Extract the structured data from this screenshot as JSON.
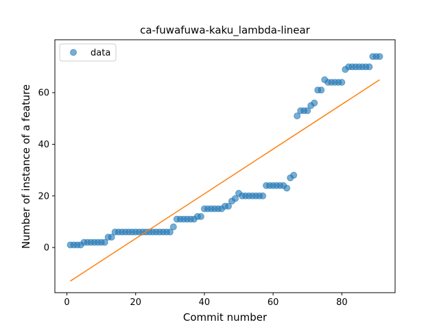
{
  "chart_data": {
    "type": "scatter",
    "title": "ca-fuwafuwa-kaku_lambda-linear",
    "xlabel": "Commit number",
    "ylabel": "Number of instance of a feature",
    "xlim": [
      -3.5,
      95.5
    ],
    "ylim": [
      -17.5,
      80.5
    ],
    "xticks": [
      0,
      20,
      40,
      60,
      80
    ],
    "yticks": [
      0,
      20,
      40,
      60
    ],
    "grid": false,
    "legend": {
      "position": "top-left",
      "entries": [
        "data"
      ]
    },
    "colors": {
      "points": "#1f77b4",
      "fit": "#ff7f0e"
    },
    "series": [
      {
        "name": "data",
        "kind": "scatter",
        "x": [
          1,
          2,
          3,
          4,
          5,
          6,
          7,
          8,
          9,
          10,
          11,
          12,
          13,
          14,
          15,
          16,
          17,
          18,
          19,
          20,
          21,
          22,
          23,
          24,
          25,
          26,
          27,
          28,
          29,
          30,
          31,
          32,
          33,
          34,
          35,
          36,
          37,
          38,
          39,
          40,
          41,
          42,
          43,
          44,
          45,
          46,
          47,
          48,
          49,
          50,
          51,
          52,
          53,
          54,
          55,
          56,
          57,
          58,
          59,
          60,
          61,
          62,
          63,
          64,
          65,
          66,
          67,
          68,
          69,
          70,
          71,
          72,
          73,
          74,
          75,
          76,
          77,
          78,
          79,
          80,
          81,
          82,
          83,
          84,
          85,
          86,
          87,
          88,
          89,
          90,
          91
        ],
        "y": [
          1,
          1,
          1,
          1,
          2,
          2,
          2,
          2,
          2,
          2,
          2,
          4,
          4,
          6,
          6,
          6,
          6,
          6,
          6,
          6,
          6,
          6,
          6,
          6,
          6,
          6,
          6,
          6,
          6,
          6,
          8,
          11,
          11,
          11,
          11,
          11,
          11,
          12,
          12,
          15,
          15,
          15,
          15,
          15,
          15,
          16,
          16,
          18,
          19,
          21,
          20,
          20,
          20,
          20,
          20,
          20,
          20,
          24,
          24,
          24,
          24,
          24,
          24,
          23,
          27,
          28,
          51,
          53,
          53,
          53,
          55,
          56,
          61,
          61,
          65,
          64,
          64,
          64,
          64,
          64,
          69,
          70,
          70,
          70,
          70,
          70,
          70,
          70,
          74,
          74,
          74
        ]
      },
      {
        "name": "",
        "kind": "line",
        "x": [
          1,
          91
        ],
        "y": [
          -13,
          65
        ]
      }
    ]
  }
}
